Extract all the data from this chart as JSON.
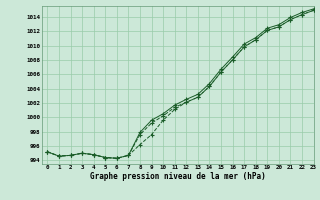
{
  "xlabel": "Graphe pression niveau de la mer (hPa)",
  "ylim": [
    993.5,
    1015.5
  ],
  "xlim": [
    -0.5,
    23
  ],
  "yticks": [
    994,
    996,
    998,
    1000,
    1002,
    1004,
    1006,
    1008,
    1010,
    1012,
    1014
  ],
  "xticks": [
    0,
    1,
    2,
    3,
    4,
    5,
    6,
    7,
    8,
    9,
    10,
    11,
    12,
    13,
    14,
    15,
    16,
    17,
    18,
    19,
    20,
    21,
    22,
    23
  ],
  "bg_color": "#cce8d8",
  "grid_color": "#99ccaa",
  "line_color": "#1a5c28",
  "series1": [
    995.2,
    994.6,
    994.7,
    995.0,
    994.8,
    994.4,
    994.3,
    994.7,
    997.6,
    999.2,
    1000.2,
    1001.4,
    1002.1,
    1002.8,
    1004.3,
    1006.3,
    1008.0,
    1009.8,
    1010.8,
    1012.1,
    1012.6,
    1013.6,
    1014.3,
    1014.9
  ],
  "series2": [
    995.2,
    994.6,
    994.7,
    995.0,
    994.8,
    994.4,
    994.3,
    994.7,
    996.2,
    997.6,
    999.6,
    1001.1,
    1002.1,
    1002.8,
    1004.3,
    1006.3,
    1008.0,
    1009.8,
    1010.8,
    1012.1,
    1012.6,
    1013.6,
    1014.3,
    1014.9
  ],
  "series3": [
    995.2,
    994.6,
    994.7,
    995.0,
    994.8,
    994.4,
    994.3,
    994.7,
    997.9,
    999.6,
    1000.5,
    1001.7,
    1002.5,
    1003.2,
    1004.7,
    1006.7,
    1008.4,
    1010.2,
    1011.1,
    1012.4,
    1012.9,
    1013.9,
    1014.6,
    1015.1
  ],
  "fig_width": 3.2,
  "fig_height": 2.0,
  "dpi": 100
}
